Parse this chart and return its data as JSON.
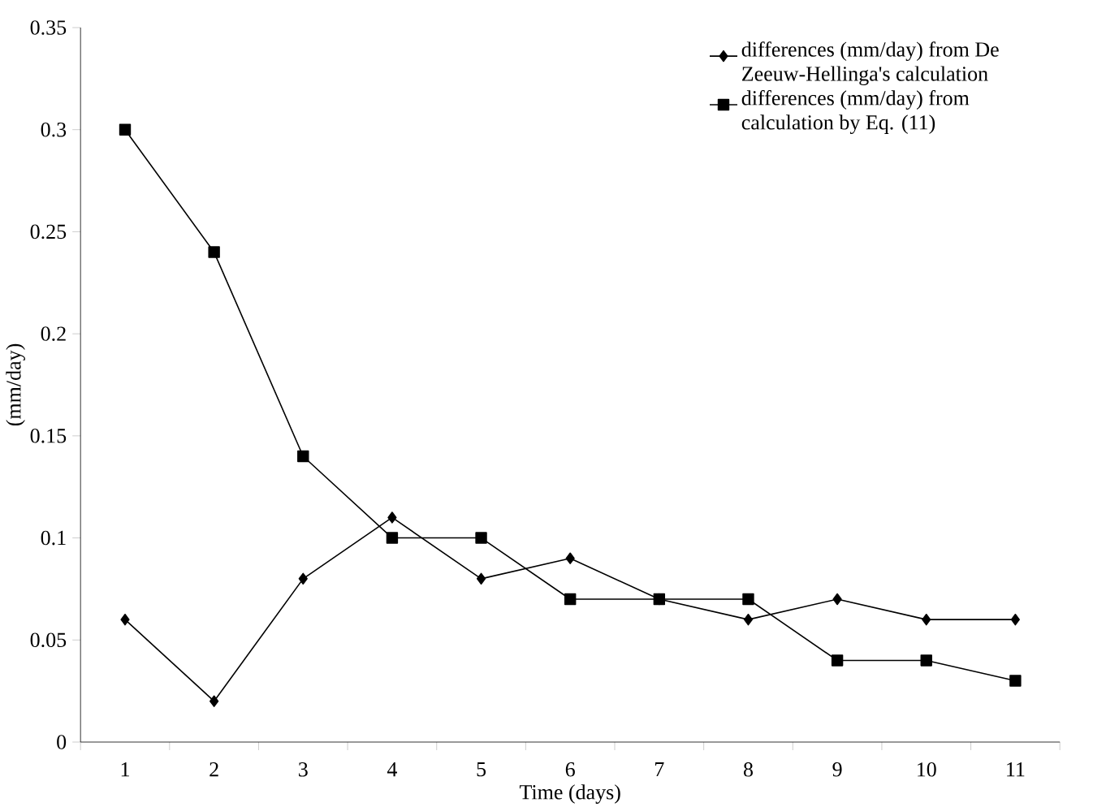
{
  "chart_data": {
    "type": "line",
    "xlabel": "Time (days)",
    "ylabel": "(mm/day)",
    "categories": [
      "1",
      "2",
      "3",
      "4",
      "5",
      "6",
      "7",
      "8",
      "9",
      "10",
      "11"
    ],
    "series": [
      {
        "name": "differences (mm/day) from De Zeeuw-Hellinga's calculation",
        "color": "#000000",
        "marker": "diamond",
        "values": [
          0.06,
          0.02,
          0.08,
          0.11,
          0.08,
          0.09,
          0.07,
          0.06,
          0.07,
          0.06,
          0.06
        ]
      },
      {
        "name": "differences (mm/day) from calculation by Eq. (11)",
        "color": "#000000",
        "marker": "square",
        "values": [
          0.3,
          0.24,
          0.14,
          0.1,
          0.1,
          0.07,
          0.07,
          0.07,
          0.04,
          0.04,
          0.03
        ]
      }
    ],
    "ylim": [
      0,
      0.35
    ],
    "yticks": [
      0,
      0.05,
      0.1,
      0.15,
      0.2,
      0.25,
      0.3,
      0.35
    ],
    "grid": false,
    "legend": "top right",
    "line_style": "solid"
  }
}
